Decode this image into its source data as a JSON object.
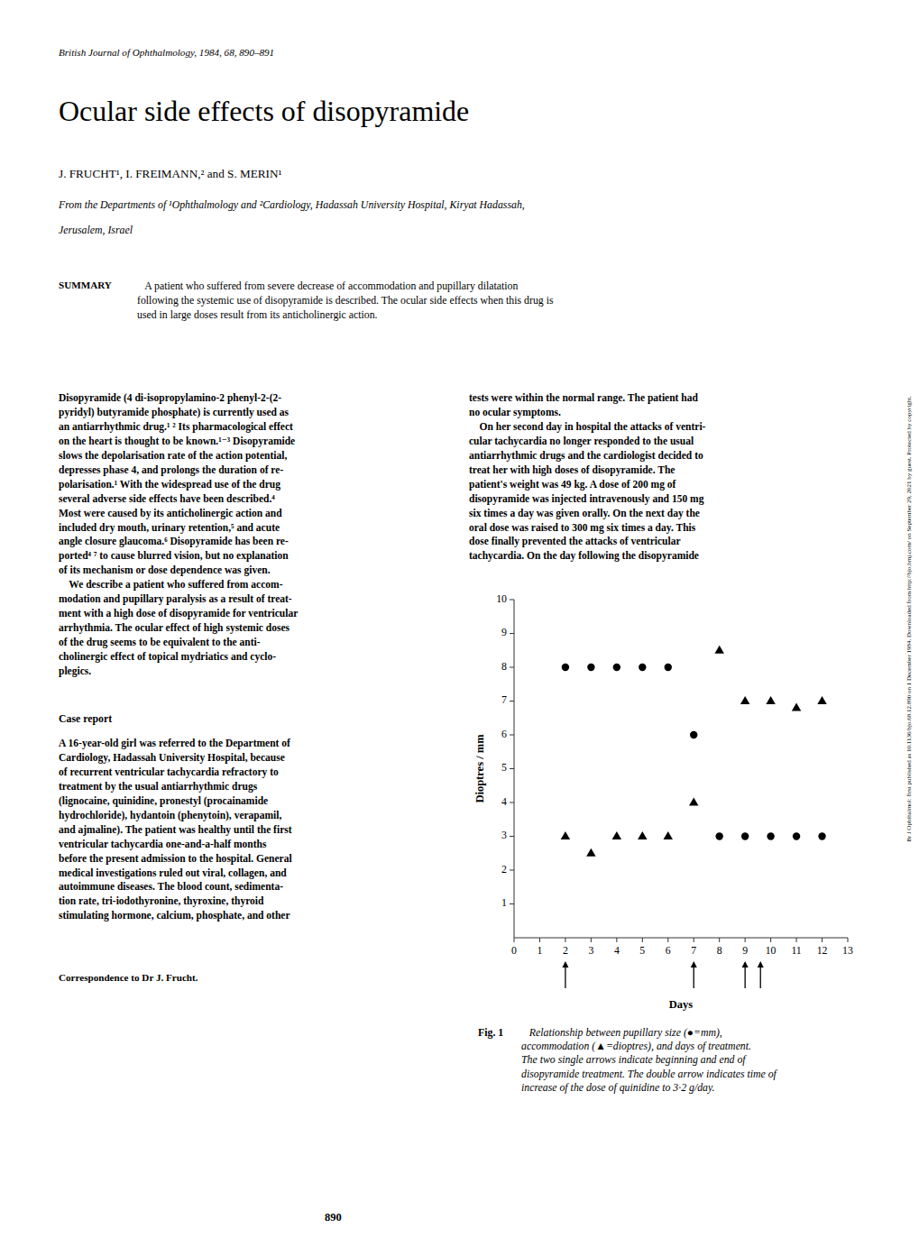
{
  "page": {
    "journal_line": "British Journal of Ophthalmology, 1984, 68, 890–891",
    "title": "Ocular side effects of disopyramide",
    "authors": "J. FRUCHT¹, I. FREIMANN,² and S. MERIN¹",
    "affiliation_line1": "From the Departments of ¹Ophthalmology and ²Cardiology, Hadassah University Hospital, Kiryat Hadassah,",
    "affiliation_line2": "Jerusalem, Israel",
    "summary_label": "SUMMARY",
    "summary_text": "   A patient who suffered from severe decrease of accommodation and pupillary dilatation\nfollowing the systemic use of disopyramide is described. The ocular side effects when this drug is\nused in large doses result from its anticholinergic action.",
    "sidebar": "Br J Ophthalmol: first published as 10.1136/bjo.68.12.890 on 1 December 1984. Downloaded from http://bjo.bmj.com/ on September 29, 2021 by guest. Protected by copyright.",
    "body_column1": "Disopyramide (4 di-isopropylamino-2 phenyl-2-(2-\npyridyl) butyramide phosphate) is currently used as\nan antiarrhythmic drug.¹ ² Its pharmacological effect\non the heart is thought to be known.¹⁻³ Disopyramide\nslows the depolarisation rate of the action potential,\ndepresses phase 4, and prolongs the duration of re-\npolarisation.¹ With the widespread use of the drug\nseveral adverse side effects have been described.⁴\nMost were caused by its anticholinergic action and\nincluded dry mouth, urinary retention,⁵ and acute\nangle closure glaucoma.⁶ Disopyramide has been re-\nported⁴ ⁷ to cause blurred vision, but no explanation\nof its mechanism or dose dependence was given.\n    We describe a patient who suffered from accom-\nmodation and pupillary paralysis as a result of treat-\nment with a high dose of disopyramide for ventricular\narrhythmia. The ocular effect of high systemic doses\nof the drug seems to be equivalent to the anti-\ncholinergic effect of topical mydriatics and cyclo-\nplegics.",
    "case_report_heading": "Case report",
    "case_report_body": "A 16-year-old girl was referred to the Department of\nCardiology, Hadassah University Hospital, because\nof recurrent ventricular tachycardia refractory to\ntreatment by the usual antiarrhythmic drugs\n(lignocaine, quinidine, pronestyl (procainamide\nhydrochloride), hydantoin (phenytoin), verapamil,\nand ajmaline). The patient was healthy until the first\nventricular tachycardia one-and-a-half months\nbefore the present admission to the hospital. General\nmedical investigations ruled out viral, collagen, and\nautoimmune diseases. The blood count, sedimenta-\ntion rate, tri-iodothyronine, thyroxine, thyroid\nstimulating hormone, calcium, phosphate, and other",
    "correspondence": "Correspondence to Dr J. Frucht.",
    "page_number": "890",
    "body_column2": "tests were within the normal range. The patient had\nno ocular symptoms.\n    On her second day in hospital the attacks of ventri-\ncular tachycardia no longer responded to the usual\nantiarrhythmic drugs and the cardiologist decided to\ntreat her with high doses of disopyramide. The\npatient's weight was 49 kg. A dose of 200 mg of\ndisopyramide was injected intravenously and 150 mg\nsix times a day was given orally. On the next day the\noral dose was raised to 300 mg six times a day. This\ndose finally prevented the attacks of ventricular\ntachycardia. On the day following the disopyramide",
    "caption_label": "Fig. 1",
    "caption_text": "   Relationship between pupillary size (●=mm),\naccommodation (▲=dioptres), and days of treatment.\nThe two single arrows indicate beginning and end of\ndisopyramide treatment. The double arrow indicates time of\nincrease of the dose of quinidine to 3·2 g/day."
  },
  "chart_data": {
    "type": "scatter",
    "xlabel": "Days",
    "ylabel": "Dioptres / mm",
    "xlim": [
      0,
      13
    ],
    "ylim": [
      0,
      10
    ],
    "xticks": [
      0,
      1,
      2,
      3,
      4,
      5,
      6,
      7,
      8,
      9,
      10,
      11,
      12,
      13
    ],
    "yticks": [
      1,
      2,
      3,
      4,
      5,
      6,
      7,
      8,
      9,
      10
    ],
    "grid": false,
    "series": [
      {
        "marker": "circle",
        "color": "#000000",
        "x": [
          2,
          3,
          4,
          5,
          6,
          7,
          8,
          9,
          10,
          11,
          12
        ],
        "values": [
          8,
          8,
          8,
          8,
          8,
          6,
          3,
          3,
          3,
          3,
          3
        ]
      },
      {
        "marker": "triangle",
        "color": "#000000",
        "x": [
          2,
          3,
          4,
          5,
          6,
          7,
          8,
          9,
          10,
          11,
          12
        ],
        "values": [
          3,
          2.5,
          3,
          3,
          3,
          4,
          8.5,
          7,
          7,
          6.8,
          7
        ]
      }
    ],
    "single_arrow_days": [
      2,
      7
    ],
    "double_arrow_days": [
      9.0,
      9.6
    ]
  }
}
